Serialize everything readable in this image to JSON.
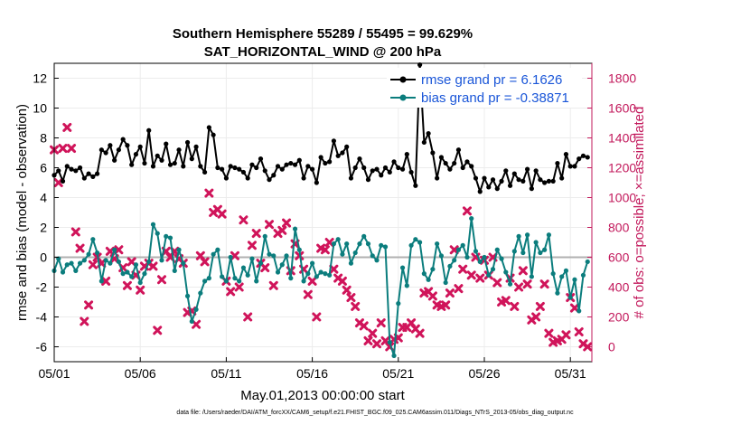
{
  "chart_data": {
    "type": "line",
    "title": "Southern Hemisphere 55289 / 55495 = 99.629%",
    "subtitle": "SAT_HORIZONTAL_WIND @ 200 hPa",
    "xlabel": "May.01,2013 00:00:00 start",
    "ylabel": "rmse and bias (model - observation)",
    "ylabel_right": "# of obs: o=possible; ×=assimilated",
    "footnote": "data file: /Users/raeder/DAI/ATM_forcXX/CAM6_setup/f.e21.FHIST_BGC.f09_025.CAM6assim.011/Diags_NTrS_2013-05/obs_diag_output.nc",
    "x_ticks": [
      "05/01",
      "05/06",
      "05/11",
      "05/16",
      "05/21",
      "05/26",
      "05/31"
    ],
    "x_tick_days": [
      1,
      6,
      11,
      16,
      21,
      26,
      31
    ],
    "xlim": [
      1,
      32.25
    ],
    "ylim": [
      -7,
      13
    ],
    "y_ticks": [
      -6,
      -4,
      -2,
      0,
      2,
      4,
      6,
      8,
      10,
      12
    ],
    "ylim_right": [
      -100,
      1900
    ],
    "y_ticks_right": [
      0,
      200,
      400,
      600,
      800,
      1000,
      1200,
      1400,
      1600,
      1800
    ],
    "grid": true,
    "legend_position": "top-right",
    "series": [
      {
        "name": "rmse grand pr = 6.1626",
        "axis": "left",
        "color": "#000000",
        "x": [
          1.0,
          1.25,
          1.5,
          1.75,
          2.0,
          2.25,
          2.5,
          2.75,
          3.0,
          3.25,
          3.5,
          3.75,
          4.0,
          4.25,
          4.5,
          4.75,
          5.0,
          5.25,
          5.5,
          5.75,
          6.0,
          6.25,
          6.5,
          6.75,
          7.0,
          7.25,
          7.5,
          7.75,
          8.0,
          8.25,
          8.5,
          8.75,
          9.0,
          9.25,
          9.5,
          9.75,
          10.0,
          10.25,
          10.5,
          10.75,
          11.0,
          11.25,
          11.5,
          11.75,
          12.0,
          12.25,
          12.5,
          12.75,
          13.0,
          13.25,
          13.5,
          13.75,
          14.0,
          14.25,
          14.5,
          14.75,
          15.0,
          15.25,
          15.5,
          15.75,
          16.0,
          16.25,
          16.5,
          16.75,
          17.0,
          17.25,
          17.5,
          17.75,
          18.0,
          18.25,
          18.5,
          18.75,
          19.0,
          19.25,
          19.5,
          19.75,
          20.0,
          20.25,
          20.5,
          20.75,
          21.0,
          21.25,
          21.5,
          21.75,
          22.0,
          22.25,
          22.5,
          22.75,
          23.0,
          23.25,
          23.5,
          23.75,
          24.0,
          24.25,
          24.5,
          24.75,
          25.0,
          25.25,
          25.5,
          25.75,
          26.0,
          26.25,
          26.5,
          26.75,
          27.0,
          27.25,
          27.5,
          27.75,
          28.0,
          28.25,
          28.5,
          28.75,
          29.0,
          29.25,
          29.5,
          29.75,
          30.0,
          30.25,
          30.5,
          30.75,
          31.0,
          31.25,
          31.5,
          31.75,
          32.0
        ],
        "values": [
          5.5,
          5.8,
          5.1,
          6.1,
          5.9,
          5.8,
          6.0,
          5.3,
          5.6,
          5.4,
          5.6,
          7.2,
          7.0,
          7.5,
          6.5,
          7.2,
          7.9,
          7.5,
          6.2,
          6.9,
          7.4,
          6.3,
          8.5,
          6.1,
          6.8,
          6.5,
          7.6,
          6.2,
          6.3,
          7.2,
          6.1,
          7.7,
          6.6,
          7.4,
          6.1,
          5.7,
          8.7,
          8.2,
          6.0,
          5.9,
          5.3,
          6.1,
          6.0,
          5.9,
          5.7,
          5.3,
          6.2,
          6.0,
          6.6,
          5.8,
          5.2,
          5.5,
          6.1,
          5.9,
          6.2,
          6.3,
          6.2,
          6.5,
          5.3,
          6.1,
          5.9,
          5.0,
          6.7,
          6.3,
          6.4,
          7.8,
          6.8,
          7.0,
          7.4,
          5.3,
          6.0,
          6.6,
          6.0,
          5.2,
          5.8,
          5.9,
          5.5,
          6.0,
          5.7,
          6.4,
          6.0,
          5.9,
          6.9,
          5.7,
          4.8,
          12.9,
          7.7,
          8.3,
          7.0,
          5.3,
          6.7,
          6.3,
          5.9,
          6.3,
          7.2,
          6.0,
          6.4,
          6.1,
          5.3,
          4.4,
          5.3,
          4.7,
          5.2,
          4.6,
          5.1,
          5.8,
          4.8,
          5.6,
          5.2,
          5.1,
          5.9,
          4.6,
          5.8,
          5.2,
          5.0,
          5.1,
          5.1,
          6.3,
          5.3,
          6.9,
          6.1,
          6.1,
          6.6,
          6.8,
          6.7
        ]
      },
      {
        "name": "bias grand pr = -0.38871",
        "axis": "left",
        "color": "#0b7d7d",
        "x": [
          1.0,
          1.25,
          1.5,
          1.75,
          2.0,
          2.25,
          2.5,
          2.75,
          3.0,
          3.25,
          3.5,
          3.75,
          4.0,
          4.25,
          4.5,
          4.75,
          5.0,
          5.25,
          5.5,
          5.75,
          6.0,
          6.25,
          6.5,
          6.75,
          7.0,
          7.25,
          7.5,
          7.75,
          8.0,
          8.25,
          8.5,
          8.75,
          9.0,
          9.25,
          9.5,
          9.75,
          10.0,
          10.25,
          10.5,
          10.75,
          11.0,
          11.25,
          11.5,
          11.75,
          12.0,
          12.25,
          12.5,
          12.75,
          13.0,
          13.25,
          13.5,
          13.75,
          14.0,
          14.25,
          14.5,
          14.75,
          15.0,
          15.25,
          15.5,
          15.75,
          16.0,
          16.25,
          16.5,
          16.75,
          17.0,
          17.25,
          17.5,
          17.75,
          18.0,
          18.25,
          18.5,
          18.75,
          19.0,
          19.25,
          19.5,
          19.75,
          20.0,
          20.25,
          20.5,
          20.75,
          21.0,
          21.25,
          21.5,
          21.75,
          22.0,
          22.25,
          22.5,
          22.75,
          23.0,
          23.25,
          23.5,
          23.75,
          24.0,
          24.25,
          24.5,
          24.75,
          25.0,
          25.25,
          25.5,
          25.75,
          26.0,
          26.25,
          26.5,
          26.75,
          27.0,
          27.25,
          27.5,
          27.75,
          28.0,
          28.25,
          28.5,
          28.75,
          29.0,
          29.25,
          29.5,
          29.75,
          30.0,
          30.25,
          30.5,
          30.75,
          31.0,
          31.25,
          31.5,
          31.75,
          32.0
        ],
        "values": [
          -0.9,
          -0.1,
          -1.0,
          -0.5,
          -0.4,
          -0.9,
          -0.4,
          -0.2,
          0.2,
          1.2,
          0.3,
          -1.6,
          -0.2,
          -0.4,
          0.5,
          -0.3,
          -1.1,
          -1.0,
          -1.3,
          -0.5,
          -1.7,
          -1.1,
          -0.3,
          2.2,
          1.6,
          -0.2,
          1.4,
          1.3,
          -0.9,
          0.5,
          -0.4,
          -2.6,
          -4.3,
          -3.5,
          -2.4,
          -1.6,
          -1.4,
          0.2,
          0.5,
          -1.3,
          -1.6,
          0.0,
          -1.4,
          -1.6,
          -0.7,
          -1.2,
          -0.1,
          -1.6,
          -0.4,
          1.4,
          0.2,
          0.1,
          -1.0,
          -0.5,
          0.1,
          -1.4,
          1.9,
          0.5,
          -1.6,
          -1.1,
          -0.4,
          -1.3,
          -1.0,
          -1.1,
          -1.2,
          0.9,
          1.2,
          0.2,
          0.9,
          -0.4,
          0.3,
          0.9,
          1.4,
          0.9,
          0.1,
          -0.2,
          0.8,
          0.7,
          -5.7,
          -6.6,
          -3.1,
          -0.7,
          -1.9,
          0.8,
          1.2,
          1.0,
          -1.1,
          -1.5,
          -0.8,
          0.9,
          0.1,
          -1.7,
          -0.6,
          -0.2,
          0.5,
          0.8,
          0.0,
          2.6,
          0.4,
          -0.3,
          0.0,
          -1.2,
          -0.8,
          0.5,
          -0.1,
          -1.0,
          -1.8,
          0.4,
          1.4,
          0.3,
          1.5,
          -1.3,
          1.0,
          0.3,
          0.5,
          1.5,
          -1.1,
          -2.4,
          -1.3,
          -0.9,
          -2.7,
          -1.5,
          -3.6,
          -1.2,
          -0.3
        ]
      },
      {
        "name": "possible",
        "axis": "right",
        "marker": "o",
        "color": "#c2185b",
        "note": "hidden behind assimilated markers"
      },
      {
        "name": "assimilated",
        "axis": "right",
        "marker": "x",
        "color": "#d0145a",
        "x": [
          1.0,
          1.25,
          1.5,
          1.75,
          2.0,
          2.25,
          2.5,
          2.75,
          3.0,
          3.25,
          3.5,
          3.75,
          4.0,
          4.25,
          4.5,
          4.75,
          5.0,
          5.25,
          5.5,
          5.75,
          6.0,
          6.25,
          6.5,
          6.75,
          7.0,
          7.25,
          7.5,
          7.75,
          8.0,
          8.25,
          8.5,
          8.75,
          9.0,
          9.25,
          9.5,
          9.75,
          10.0,
          10.25,
          10.5,
          10.75,
          11.0,
          11.25,
          11.5,
          11.75,
          12.0,
          12.25,
          12.5,
          12.75,
          13.0,
          13.25,
          13.5,
          13.75,
          14.0,
          14.25,
          14.5,
          14.75,
          15.0,
          15.25,
          15.5,
          15.75,
          16.0,
          16.25,
          16.5,
          16.75,
          17.0,
          17.25,
          17.5,
          17.75,
          18.0,
          18.25,
          18.5,
          18.75,
          19.0,
          19.25,
          19.5,
          19.75,
          20.0,
          20.25,
          20.5,
          20.75,
          21.0,
          21.25,
          21.5,
          21.75,
          22.0,
          22.25,
          22.5,
          22.75,
          23.0,
          23.25,
          23.5,
          23.75,
          24.0,
          24.25,
          24.5,
          24.75,
          25.0,
          25.25,
          25.5,
          25.75,
          26.0,
          26.25,
          26.5,
          26.75,
          27.0,
          27.25,
          27.5,
          27.75,
          28.0,
          28.25,
          28.5,
          28.75,
          29.0,
          29.25,
          29.5,
          29.75,
          30.0,
          30.25,
          30.5,
          30.75,
          31.0,
          31.25,
          31.5,
          31.75,
          32.0
        ],
        "values": [
          1320,
          1100,
          1330,
          1470,
          1330,
          770,
          660,
          170,
          280,
          550,
          600,
          560,
          440,
          640,
          590,
          650,
          530,
          410,
          570,
          480,
          380,
          540,
          560,
          540,
          110,
          450,
          640,
          600,
          640,
          590,
          560,
          230,
          240,
          150,
          610,
          570,
          1030,
          900,
          920,
          890,
          440,
          370,
          610,
          400,
          850,
          200,
          680,
          760,
          560,
          530,
          820,
          410,
          760,
          780,
          830,
          510,
          690,
          610,
          520,
          350,
          440,
          200,
          660,
          650,
          700,
          520,
          460,
          440,
          380,
          330,
          270,
          160,
          140,
          40,
          90,
          20,
          160,
          40,
          0,
          50,
          60,
          130,
          130,
          160,
          120,
          90,
          360,
          370,
          340,
          280,
          270,
          280,
          360,
          650,
          390,
          520,
          910,
          480,
          600,
          460,
          580,
          480,
          600,
          430,
          300,
          310,
          460,
          270,
          400,
          510,
          420,
          180,
          200,
          270,
          420,
          90,
          30,
          40,
          50,
          80,
          330,
          260,
          100,
          20,
          0
        ]
      }
    ]
  }
}
